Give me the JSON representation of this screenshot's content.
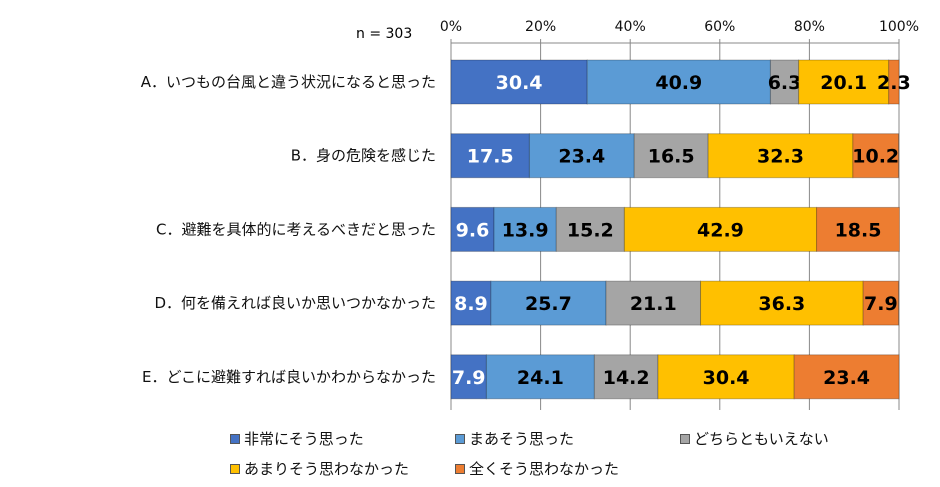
{
  "chart_data": {
    "type": "bar",
    "orientation": "horizontal",
    "stacked": "percent",
    "note_text": "n = 303",
    "categories": [
      "A．いつもの台風と違う状況になると思った",
      "B．身の危険を感じた",
      "C．避難を具体的に考えるべきだと思った",
      "D．何を備えれば良いか思いつかなかった",
      "E．どこに避難すれば良いかわからなかった"
    ],
    "series": [
      {
        "name": "非常にそう思った",
        "color": "#4472C4",
        "label_color": "#ffffff",
        "values": [
          30.4,
          17.5,
          9.6,
          8.9,
          7.9
        ]
      },
      {
        "name": "まあそう思った",
        "color": "#5B9BD5",
        "label_color": "#000000",
        "values": [
          40.9,
          23.4,
          13.9,
          25.7,
          24.1
        ]
      },
      {
        "name": "どちらともいえない",
        "color": "#A5A5A5",
        "label_color": "#000000",
        "values": [
          6.3,
          16.5,
          15.2,
          21.1,
          14.2
        ]
      },
      {
        "name": "あまりそう思わなかった",
        "color": "#FFC000",
        "label_color": "#000000",
        "values": [
          20.1,
          32.3,
          42.9,
          36.3,
          30.4
        ]
      },
      {
        "name": "全くそう思わなかった",
        "color": "#ED7D31",
        "label_color": "#000000",
        "values": [
          2.3,
          10.2,
          18.5,
          7.9,
          23.4
        ]
      }
    ],
    "xlim": [
      0,
      100
    ],
    "xticks": [
      "0%",
      "20%",
      "40%",
      "60%",
      "80%",
      "100%"
    ],
    "grid": true,
    "axis_position": "top",
    "legend_placement": "bottom"
  }
}
